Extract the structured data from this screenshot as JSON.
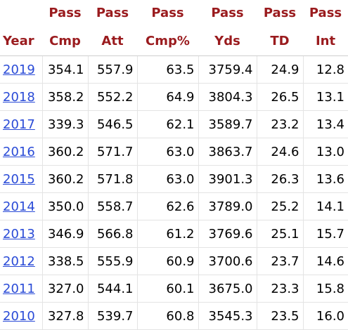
{
  "table": {
    "over_header": [
      "",
      "Pass",
      "Pass",
      "Pass",
      "Pass",
      "Pass",
      "Pass"
    ],
    "header": [
      "Year",
      "Cmp",
      "Att",
      "Cmp%",
      "Yds",
      "TD",
      "Int"
    ],
    "rows": [
      [
        "2019",
        "354.1",
        "557.9",
        "63.5",
        "3759.4",
        "24.9",
        "12.8"
      ],
      [
        "2018",
        "358.2",
        "552.2",
        "64.9",
        "3804.3",
        "26.5",
        "13.1"
      ],
      [
        "2017",
        "339.3",
        "546.5",
        "62.1",
        "3589.7",
        "23.2",
        "13.4"
      ],
      [
        "2016",
        "360.2",
        "571.7",
        "63.0",
        "3863.7",
        "24.6",
        "13.0"
      ],
      [
        "2015",
        "360.2",
        "571.8",
        "63.0",
        "3901.3",
        "26.3",
        "13.6"
      ],
      [
        "2014",
        "350.0",
        "558.7",
        "62.6",
        "3789.0",
        "25.2",
        "14.1"
      ],
      [
        "2013",
        "346.9",
        "566.8",
        "61.2",
        "3769.6",
        "25.1",
        "15.7"
      ],
      [
        "2012",
        "338.5",
        "555.9",
        "60.9",
        "3700.6",
        "23.7",
        "14.6"
      ],
      [
        "2011",
        "327.0",
        "544.1",
        "60.1",
        "3675.0",
        "23.3",
        "15.8"
      ],
      [
        "2010",
        "327.8",
        "539.7",
        "60.8",
        "3545.3",
        "23.5",
        "16.0"
      ]
    ]
  },
  "colors": {
    "header_text": "#9a1b1e",
    "link": "#2a4bd7",
    "grid": "#e4e4e4"
  }
}
